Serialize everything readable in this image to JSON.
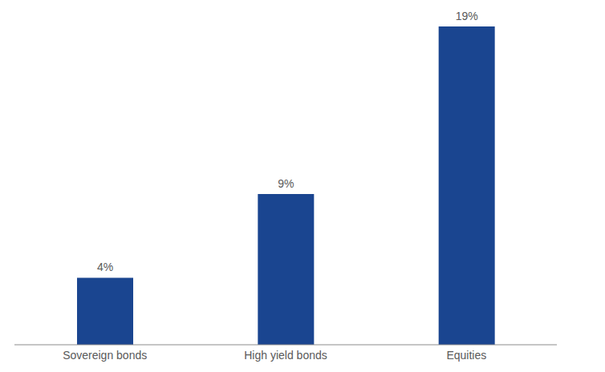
{
  "chart_data": {
    "type": "bar",
    "categories": [
      "Sovereign bonds",
      "High yield bonds",
      "Equities"
    ],
    "values": [
      4,
      9,
      19
    ],
    "value_labels": [
      "4%",
      "9%",
      "19%"
    ],
    "data_labels": true,
    "color": "#1a4590",
    "ylim": [
      0,
      20
    ],
    "tick_labels": "x",
    "grid": false
  }
}
